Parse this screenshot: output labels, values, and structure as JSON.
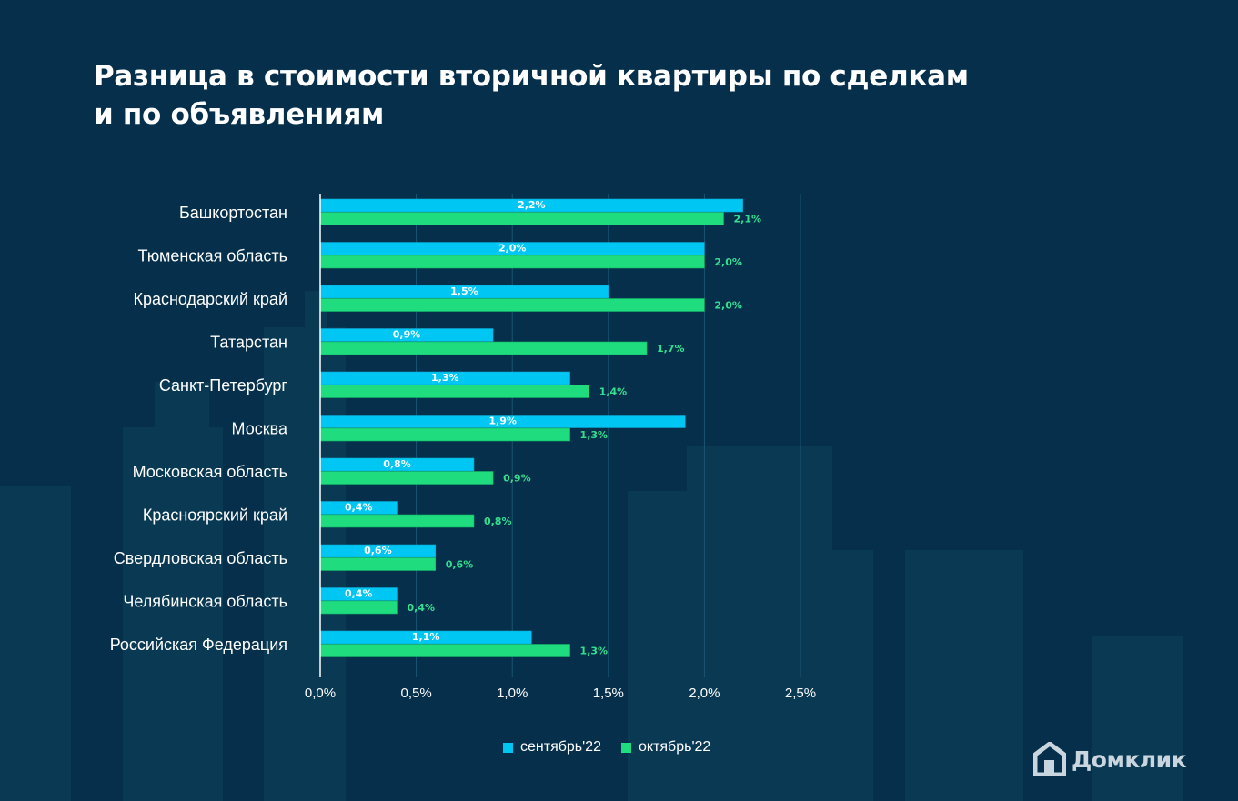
{
  "title_lines": [
    "Разница в стоимости вторичной квартиры по сделкам",
    "и по объявлениям"
  ],
  "brand": {
    "name": "Домклик",
    "icon": "house-logo-icon"
  },
  "colors": {
    "background": "#052f4a",
    "series_a": "#00c6f3",
    "series_b": "#1fdc7f",
    "label_b": "#34e08f"
  },
  "chart_data": {
    "type": "bar",
    "orientation": "horizontal",
    "title": "Разница в стоимости вторичной квартиры по сделкам и по объявлениям",
    "categories": [
      "Башкортостан",
      "Тюменская область",
      "Краснодарский край",
      "Татарстан",
      "Санкт-Петербург",
      "Москва",
      "Московская область",
      "Красноярский край",
      "Свердловская область",
      "Челябинская область",
      "Российская Федерация"
    ],
    "series": [
      {
        "name": "сентябрь'22",
        "values": [
          2.2,
          2.0,
          1.5,
          0.9,
          1.3,
          1.9,
          0.8,
          0.4,
          0.6,
          0.4,
          1.1
        ],
        "labels": [
          "2,2%",
          "2,0%",
          "1,5%",
          "0,9%",
          "1,3%",
          "1,9%",
          "0,8%",
          "0,4%",
          "0,6%",
          "0,4%",
          "1,1%"
        ]
      },
      {
        "name": "октябрь'22",
        "values": [
          2.1,
          2.0,
          2.0,
          1.7,
          1.4,
          1.3,
          0.9,
          0.8,
          0.6,
          0.4,
          1.3
        ],
        "labels": [
          "2,1%",
          "2,0%",
          "2,0%",
          "1,7%",
          "1,4%",
          "1,3%",
          "0,9%",
          "0,8%",
          "0,6%",
          "0,4%",
          "1,3%"
        ]
      }
    ],
    "xlim": [
      0,
      2.5
    ],
    "ticks": [
      0,
      0.5,
      1.0,
      1.5,
      2.0,
      2.5
    ],
    "tick_labels": [
      "0,0%",
      "0,5%",
      "1,0%",
      "1,5%",
      "2,0%",
      "2,5%"
    ],
    "grid": true,
    "legend": "bottom-center"
  }
}
